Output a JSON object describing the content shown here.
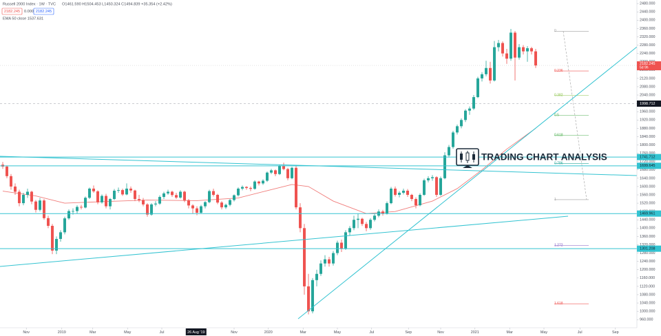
{
  "header": {
    "title": "Russell 2000 Index · 1W · TVC",
    "ohlc": "O1461.590 H1504.453 L1450.324 C1494.839 +35.354 (+2.42%)",
    "boxes": [
      "2182.245",
      "0.000",
      "2182.245"
    ],
    "indicator": "EMA 50 close 1537.631",
    "watermark": "TRADING CHART ANALYSIS"
  },
  "chart_data": {
    "type": "candlestick",
    "up_color": "#26a69a",
    "down_color": "#ef5350",
    "candles": [
      [
        1705,
        1718,
        1685,
        1696
      ],
      [
        1696,
        1702,
        1640,
        1650
      ],
      [
        1650,
        1660,
        1585,
        1600
      ],
      [
        1600,
        1615,
        1560,
        1575
      ],
      [
        1575,
        1585,
        1505,
        1520
      ],
      [
        1520,
        1570,
        1510,
        1560
      ],
      [
        1560,
        1590,
        1545,
        1575
      ],
      [
        1575,
        1580,
        1515,
        1528
      ],
      [
        1528,
        1535,
        1475,
        1488
      ],
      [
        1488,
        1545,
        1480,
        1533
      ],
      [
        1533,
        1540,
        1440,
        1448
      ],
      [
        1448,
        1460,
        1400,
        1411
      ],
      [
        1411,
        1420,
        1275,
        1292
      ],
      [
        1292,
        1360,
        1275,
        1348
      ],
      [
        1348,
        1390,
        1335,
        1380
      ],
      [
        1380,
        1455,
        1370,
        1447
      ],
      [
        1447,
        1490,
        1440,
        1482
      ],
      [
        1482,
        1495,
        1465,
        1482
      ],
      [
        1482,
        1510,
        1470,
        1502
      ],
      [
        1502,
        1512,
        1490,
        1499
      ],
      [
        1499,
        1552,
        1495,
        1546
      ],
      [
        1546,
        1595,
        1540,
        1590
      ],
      [
        1590,
        1605,
        1570,
        1577
      ],
      [
        1577,
        1582,
        1515,
        1524
      ],
      [
        1524,
        1562,
        1518,
        1555
      ],
      [
        1555,
        1565,
        1495,
        1505
      ],
      [
        1505,
        1545,
        1490,
        1540
      ],
      [
        1540,
        1588,
        1535,
        1580
      ],
      [
        1580,
        1595,
        1570,
        1583
      ],
      [
        1583,
        1590,
        1555,
        1562
      ],
      [
        1562,
        1615,
        1558,
        1590
      ],
      [
        1590,
        1600,
        1570,
        1581
      ],
      [
        1581,
        1585,
        1530,
        1540
      ],
      [
        1540,
        1560,
        1525,
        1535
      ],
      [
        1535,
        1545,
        1505,
        1514
      ],
      [
        1514,
        1520,
        1455,
        1465
      ],
      [
        1465,
        1520,
        1460,
        1514
      ],
      [
        1514,
        1530,
        1505,
        1518
      ],
      [
        1518,
        1558,
        1512,
        1550
      ],
      [
        1550,
        1575,
        1540,
        1567
      ],
      [
        1567,
        1585,
        1560,
        1575
      ],
      [
        1575,
        1580,
        1550,
        1559
      ],
      [
        1559,
        1570,
        1540,
        1547
      ],
      [
        1547,
        1582,
        1542,
        1575
      ],
      [
        1575,
        1580,
        1525,
        1534
      ],
      [
        1534,
        1540,
        1495,
        1509
      ],
      [
        1509,
        1515,
        1470,
        1495
      ],
      [
        1495,
        1505,
        1462,
        1474
      ],
      [
        1474,
        1512,
        1468,
        1505
      ],
      [
        1505,
        1530,
        1495,
        1525
      ],
      [
        1525,
        1585,
        1520,
        1578
      ],
      [
        1578,
        1590,
        1552,
        1560
      ],
      [
        1560,
        1565,
        1515,
        1523
      ],
      [
        1523,
        1530,
        1490,
        1500
      ],
      [
        1500,
        1518,
        1492,
        1512
      ],
      [
        1512,
        1540,
        1505,
        1535
      ],
      [
        1535,
        1562,
        1528,
        1558
      ],
      [
        1558,
        1596,
        1552,
        1590
      ],
      [
        1590,
        1605,
        1582,
        1598
      ],
      [
        1598,
        1602,
        1585,
        1593
      ],
      [
        1593,
        1600,
        1578,
        1589
      ],
      [
        1589,
        1630,
        1585,
        1624
      ],
      [
        1624,
        1628,
        1605,
        1615
      ],
      [
        1615,
        1635,
        1608,
        1628
      ],
      [
        1628,
        1672,
        1622,
        1667
      ],
      [
        1667,
        1685,
        1660,
        1678
      ],
      [
        1678,
        1682,
        1650,
        1660
      ],
      [
        1660,
        1705,
        1655,
        1699
      ],
      [
        1699,
        1715,
        1678,
        1684
      ],
      [
        1684,
        1690,
        1630,
        1640
      ],
      [
        1640,
        1695,
        1635,
        1690
      ],
      [
        1690,
        1700,
        1490,
        1500
      ],
      [
        1500,
        1520,
        1380,
        1400
      ],
      [
        1400,
        1420,
        1080,
        1120
      ],
      [
        1120,
        1180,
        985,
        1000
      ],
      [
        1000,
        1160,
        990,
        1150
      ],
      [
        1150,
        1200,
        1120,
        1180
      ],
      [
        1180,
        1245,
        1170,
        1230
      ],
      [
        1230,
        1270,
        1215,
        1250
      ],
      [
        1250,
        1262,
        1215,
        1230
      ],
      [
        1230,
        1290,
        1220,
        1280
      ],
      [
        1280,
        1340,
        1270,
        1330
      ],
      [
        1330,
        1345,
        1285,
        1300
      ],
      [
        1300,
        1390,
        1295,
        1380
      ],
      [
        1380,
        1410,
        1365,
        1400
      ],
      [
        1400,
        1460,
        1390,
        1440
      ],
      [
        1440,
        1470,
        1400,
        1445
      ],
      [
        1445,
        1450,
        1410,
        1420
      ],
      [
        1420,
        1430,
        1385,
        1400
      ],
      [
        1400,
        1448,
        1392,
        1440
      ],
      [
        1440,
        1468,
        1432,
        1460
      ],
      [
        1460,
        1490,
        1452,
        1480
      ],
      [
        1480,
        1488,
        1460,
        1470
      ],
      [
        1470,
        1528,
        1465,
        1520
      ],
      [
        1520,
        1598,
        1515,
        1590
      ],
      [
        1590,
        1600,
        1552,
        1560
      ],
      [
        1560,
        1578,
        1548,
        1570
      ],
      [
        1570,
        1590,
        1562,
        1580
      ],
      [
        1580,
        1588,
        1550,
        1560
      ],
      [
        1560,
        1565,
        1530,
        1540
      ],
      [
        1540,
        1548,
        1495,
        1510
      ],
      [
        1510,
        1568,
        1505,
        1560
      ],
      [
        1560,
        1638,
        1555,
        1630
      ],
      [
        1630,
        1650,
        1620,
        1640
      ],
      [
        1640,
        1655,
        1628,
        1645
      ],
      [
        1645,
        1650,
        1550,
        1560
      ],
      [
        1560,
        1648,
        1555,
        1640
      ],
      [
        1640,
        1765,
        1635,
        1750
      ],
      [
        1750,
        1800,
        1740,
        1790
      ],
      [
        1790,
        1868,
        1782,
        1860
      ],
      [
        1860,
        1898,
        1850,
        1890
      ],
      [
        1890,
        1928,
        1880,
        1920
      ],
      [
        1920,
        1972,
        1910,
        1965
      ],
      [
        1965,
        1985,
        1945,
        1975
      ],
      [
        1975,
        2040,
        1968,
        2030
      ],
      [
        2030,
        2128,
        2025,
        2120
      ],
      [
        2120,
        2150,
        2105,
        2140
      ],
      [
        2140,
        2205,
        2130,
        2170
      ],
      [
        2170,
        2200,
        2095,
        2110
      ],
      [
        2110,
        2300,
        2105,
        2270
      ],
      [
        2270,
        2305,
        2250,
        2290
      ],
      [
        2290,
        2298,
        2225,
        2240
      ],
      [
        2240,
        2262,
        2190,
        2215
      ],
      [
        2215,
        2358,
        2205,
        2340
      ],
      [
        2340,
        2348,
        2110,
        2220
      ],
      [
        2220,
        2285,
        2210,
        2270
      ],
      [
        2270,
        2280,
        2235,
        2250
      ],
      [
        2250,
        2275,
        2200,
        2265
      ],
      [
        2265,
        2272,
        2235,
        2250
      ],
      [
        2250,
        2262,
        2170,
        2182.245
      ]
    ],
    "ema": {
      "color": "#f07c7a",
      "x": [
        0,
        8,
        15,
        25,
        35,
        47,
        57,
        64,
        70,
        74,
        80,
        88,
        95,
        104,
        110,
        116,
        122,
        129
      ],
      "values": [
        1578,
        1555,
        1520,
        1528,
        1535,
        1532,
        1545,
        1580,
        1610,
        1600,
        1530,
        1470,
        1480,
        1530,
        1590,
        1680,
        1780,
        1880
      ]
    },
    "xlim": [
      -0.667,
      153.5
    ],
    "xticks": [
      {
        "value": 5.7,
        "label": "Nov"
      },
      {
        "value": 14.3,
        "label": "2019"
      },
      {
        "value": 21.8,
        "label": "Mar"
      },
      {
        "value": 30.2,
        "label": "May"
      },
      {
        "value": 38.5,
        "label": "Jul"
      },
      {
        "value": 56,
        "label": "Nov"
      },
      {
        "value": 64.3,
        "label": "2020"
      },
      {
        "value": 72.7,
        "label": "Mar"
      },
      {
        "value": 81,
        "label": "May"
      },
      {
        "value": 89.3,
        "label": "Jul"
      },
      {
        "value": 98.2,
        "label": "Sep"
      },
      {
        "value": 106,
        "label": "Nov"
      },
      {
        "value": 114.3,
        "label": "2021"
      },
      {
        "value": 122.7,
        "label": "Mar"
      },
      {
        "value": 131,
        "label": "May"
      },
      {
        "value": 139.7,
        "label": "Jul"
      },
      {
        "value": 148.3,
        "label": "Sep"
      }
    ],
    "crosshair_x": {
      "value": 46.8,
      "label": "26 Aug '19"
    },
    "ylim": [
      921,
      2497
    ],
    "yticks": [
      {
        "value": 960,
        "label": "960.000"
      },
      {
        "value": 1000,
        "label": "1000.000"
      },
      {
        "value": 1040,
        "label": "1040.000"
      },
      {
        "value": 1080,
        "label": "1080.000"
      },
      {
        "value": 1120,
        "label": "1120.000"
      },
      {
        "value": 1160,
        "label": "1160.000"
      },
      {
        "value": 1200,
        "label": "1200.000"
      },
      {
        "value": 1240,
        "label": "1240.000"
      },
      {
        "value": 1280,
        "label": "1280.000"
      },
      {
        "value": 1320,
        "label": "1320.000"
      },
      {
        "value": 1360,
        "label": "1360.000"
      },
      {
        "value": 1400,
        "label": "1400.000"
      },
      {
        "value": 1440,
        "label": "1440.000"
      },
      {
        "value": 1480,
        "label": "1480.000"
      },
      {
        "value": 1520,
        "label": "1520.000"
      },
      {
        "value": 1560,
        "label": "1560.000"
      },
      {
        "value": 1600,
        "label": "1600.000"
      },
      {
        "value": 1640,
        "label": "1640.000"
      },
      {
        "value": 1680,
        "label": "1680.000"
      },
      {
        "value": 1720,
        "label": "1720.000"
      },
      {
        "value": 1760,
        "label": "1760.000"
      },
      {
        "value": 1800,
        "label": "1800.000"
      },
      {
        "value": 1840,
        "label": "1840.000"
      },
      {
        "value": 1880,
        "label": "1880.000"
      },
      {
        "value": 1920,
        "label": "1920.000"
      },
      {
        "value": 1960,
        "label": "1960.000"
      },
      {
        "value": 2000,
        "label": "2000.000"
      },
      {
        "value": 2040,
        "label": "2040.000"
      },
      {
        "value": 2080,
        "label": "2080.000"
      },
      {
        "value": 2120,
        "label": "2120.000"
      },
      {
        "value": 2160,
        "label": "2160.000"
      },
      {
        "value": 2200,
        "label": "2200.000"
      },
      {
        "value": 2240,
        "label": "2240.000"
      },
      {
        "value": 2280,
        "label": "2280.000"
      },
      {
        "value": 2320,
        "label": "2320.000"
      },
      {
        "value": 2360,
        "label": "2360.000"
      },
      {
        "value": 2400,
        "label": "2400.000"
      },
      {
        "value": 2440,
        "label": "2440.000"
      },
      {
        "value": 2480,
        "label": "2480.000"
      }
    ],
    "last_price": {
      "value": 2182.245,
      "countdown": "5d 9h",
      "color": "#ef5350"
    },
    "crosshair_y": {
      "value": 1998.712
    },
    "levels": {
      "color": "#33c3d1",
      "values": [
        1741.712,
        1699.645,
        1469.961,
        1301.208
      ]
    },
    "fibonacci": {
      "high": 2347,
      "low": 1537,
      "levels": [
        0,
        0.236,
        0.382,
        0.5,
        0.618,
        0.786,
        1,
        1.272,
        1.618
      ],
      "colors": [
        "#9e9e9e",
        "#ef5350",
        "#8bc34a",
        "#4caf50",
        "#4caf50",
        "#26a69a",
        "#9e9e9e",
        "#7e57c2",
        "#ef5350"
      ]
    }
  }
}
